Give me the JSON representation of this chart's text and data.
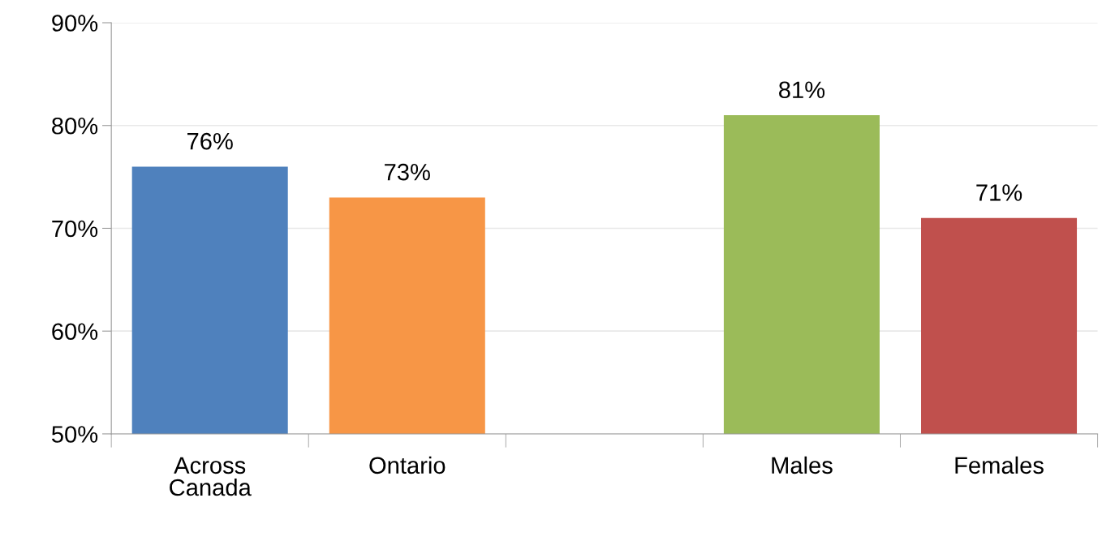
{
  "chart_data": {
    "type": "bar",
    "categories": [
      "Across\nCanada",
      "Ontario",
      null,
      "Males",
      "Females"
    ],
    "values": [
      76,
      73,
      null,
      81,
      71
    ],
    "colors": [
      "#4f81bd",
      "#f79646",
      "#ffffff",
      "#9bbb59",
      "#c0504d"
    ],
    "value_labels": [
      "76%",
      "73%",
      null,
      "81%",
      "71%"
    ],
    "ylim": [
      50,
      90
    ],
    "yticks": [
      {
        "value": 50,
        "label": "50%"
      },
      {
        "value": 60,
        "label": "60%"
      },
      {
        "value": 70,
        "label": "70%"
      },
      {
        "value": 80,
        "label": "80%"
      },
      {
        "value": 90,
        "label": "90%"
      }
    ],
    "grid": "y",
    "legend": false
  }
}
